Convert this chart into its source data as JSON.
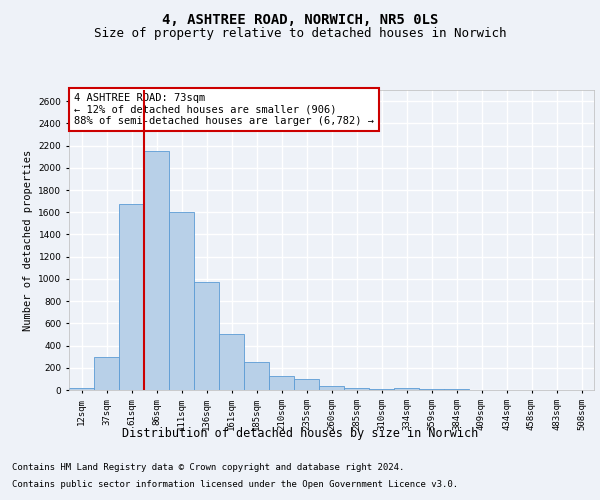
{
  "title_line1": "4, ASHTREE ROAD, NORWICH, NR5 0LS",
  "title_line2": "Size of property relative to detached houses in Norwich",
  "xlabel": "Distribution of detached houses by size in Norwich",
  "ylabel": "Number of detached properties",
  "categories": [
    "12sqm",
    "37sqm",
    "61sqm",
    "86sqm",
    "111sqm",
    "136sqm",
    "161sqm",
    "185sqm",
    "210sqm",
    "235sqm",
    "260sqm",
    "285sqm",
    "310sqm",
    "334sqm",
    "359sqm",
    "384sqm",
    "409sqm",
    "434sqm",
    "458sqm",
    "483sqm",
    "508sqm"
  ],
  "values": [
    20,
    300,
    1670,
    2150,
    1600,
    975,
    500,
    248,
    128,
    103,
    38,
    20,
    10,
    20,
    5,
    5,
    2,
    2,
    2,
    2,
    2
  ],
  "bar_color": "#b8d0e8",
  "bar_edge_color": "#5b9bd5",
  "bar_width": 1.0,
  "vline_x_idx": 3,
  "vline_color": "#cc0000",
  "annotation_text": "4 ASHTREE ROAD: 73sqm\n← 12% of detached houses are smaller (906)\n88% of semi-detached houses are larger (6,782) →",
  "annotation_box_color": "#ffffff",
  "annotation_box_edge_color": "#cc0000",
  "ylim": [
    0,
    2700
  ],
  "yticks": [
    0,
    200,
    400,
    600,
    800,
    1000,
    1200,
    1400,
    1600,
    1800,
    2000,
    2200,
    2400,
    2600
  ],
  "footnote1": "Contains HM Land Registry data © Crown copyright and database right 2024.",
  "footnote2": "Contains public sector information licensed under the Open Government Licence v3.0.",
  "bg_color": "#eef2f8",
  "plot_bg_color": "#eef2f8",
  "grid_color": "#ffffff",
  "title_fontsize": 10,
  "subtitle_fontsize": 9,
  "axis_label_fontsize": 7.5,
  "tick_fontsize": 6.5,
  "annotation_fontsize": 7.5,
  "xlabel_fontsize": 8.5,
  "footnote_fontsize": 6.5
}
